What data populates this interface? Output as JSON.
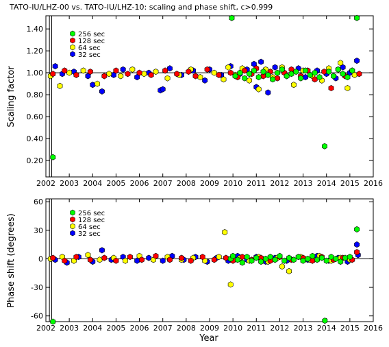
{
  "chart_data": [
    {
      "type": "scatter",
      "title": "TATO-IU/LHZ-00 vs. TATO-IU/LHZ-10: scaling and phase shift, c>0.999",
      "xlabel": "",
      "ylabel": "Scaling factor",
      "xlim": [
        2002.0,
        2016.0
      ],
      "ylim": [
        0.05,
        1.52
      ],
      "x_ticks": [
        "2002",
        "2003",
        "2004",
        "2005",
        "2006",
        "2007",
        "2008",
        "2009",
        "2010",
        "2011",
        "2012",
        "2013",
        "2014",
        "2015",
        "2016"
      ],
      "y_ticks": [
        "0.20",
        "0.40",
        "0.60",
        "0.80",
        "1.00",
        "1.20",
        "1.40"
      ],
      "reference_line": 1.0,
      "vertical_lines": [
        2002.15,
        2002.25
      ],
      "legend_position": "top-left",
      "series": [
        {
          "name": "32 sec",
          "color": "#0000ff",
          "x": [
            2002.4,
            2002.7,
            2003.2,
            2003.8,
            2004.0,
            2004.4,
            2004.9,
            2005.3,
            2005.9,
            2006.4,
            2006.9,
            2007.0,
            2007.3,
            2007.8,
            2008.3,
            2008.8,
            2009.0,
            2009.5,
            2009.9,
            2010.3,
            2010.6,
            2010.9,
            2011.0,
            2011.2,
            2011.5,
            2011.8,
            2012.3,
            2012.8,
            2013.1,
            2013.6,
            2014.0,
            2014.4,
            2014.7,
            2015.0,
            2015.3
          ],
          "y": [
            1.06,
            0.99,
            1.01,
            0.97,
            0.89,
            0.83,
            0.98,
            1.03,
            0.96,
            1.0,
            0.84,
            0.85,
            1.04,
            0.98,
            1.02,
            0.93,
            1.03,
            0.98,
            1.06,
            0.99,
            1.03,
            1.08,
            0.87,
            1.1,
            0.82,
            1.05,
            0.97,
            1.04,
            0.96,
            1.02,
            0.99,
            0.95,
            1.05,
            1.0,
            1.11
          ]
        },
        {
          "name": "64 sec",
          "color": "#ffff00",
          "x": [
            2002.2,
            2002.6,
            2003.0,
            2003.6,
            2004.2,
            2004.7,
            2005.2,
            2005.7,
            2006.2,
            2006.7,
            2007.2,
            2007.7,
            2008.2,
            2008.6,
            2009.2,
            2009.6,
            2009.8,
            2010.1,
            2010.4,
            2010.7,
            2011.1,
            2011.4,
            2011.7,
            2012.1,
            2012.6,
            2013.0,
            2013.4,
            2013.8,
            2014.1,
            2014.6,
            2014.9,
            2015.2
          ],
          "y": [
            0.97,
            0.88,
            1.0,
            1.02,
            0.9,
            0.99,
            0.97,
            1.03,
            0.99,
            1.01,
            0.95,
            0.98,
            1.03,
            0.96,
            1.0,
            0.94,
            1.05,
            0.98,
            1.04,
            0.93,
            0.85,
            1.03,
            0.96,
            1.05,
            0.89,
            1.02,
            0.97,
            0.93,
            1.04,
            1.09,
            0.86,
            0.98
          ]
        },
        {
          "name": "128 sec",
          "color": "#ff0000",
          "x": [
            2002.3,
            2002.8,
            2003.3,
            2003.9,
            2004.5,
            2005.0,
            2005.5,
            2006.0,
            2006.5,
            2007.1,
            2007.6,
            2008.1,
            2008.4,
            2008.9,
            2009.4,
            2009.9,
            2010.2,
            2010.5,
            2010.8,
            2011.0,
            2011.3,
            2011.6,
            2011.9,
            2012.2,
            2012.5,
            2012.9,
            2013.2,
            2013.5,
            2013.9,
            2014.2,
            2014.5,
            2014.8,
            2015.1,
            2015.4
          ],
          "y": [
            0.99,
            1.02,
            0.98,
            1.01,
            0.97,
            1.02,
            0.99,
            1.0,
            0.98,
            1.02,
            0.99,
            1.01,
            0.97,
            1.03,
            0.98,
            1.0,
            0.96,
            1.02,
            0.99,
            1.04,
            0.97,
            1.01,
            0.95,
            1.0,
            1.03,
            0.97,
            1.02,
            0.94,
            1.01,
            0.86,
            1.03,
            0.97,
            1.02,
            0.99
          ]
        },
        {
          "name": "256 sec",
          "color": "#00ff00",
          "x": [
            2002.3,
            2009.95,
            2010.1,
            2010.3,
            2010.5,
            2010.7,
            2010.9,
            2011.1,
            2011.3,
            2011.5,
            2011.7,
            2011.9,
            2012.1,
            2012.3,
            2012.5,
            2012.7,
            2012.9,
            2013.1,
            2013.3,
            2013.5,
            2013.7,
            2013.92,
            2014.1,
            2014.3,
            2014.5,
            2014.7,
            2014.9,
            2015.1,
            2015.3
          ],
          "y": [
            0.23,
            1.5,
            0.97,
            1.0,
            0.95,
            0.99,
            1.02,
            0.96,
            1.01,
            0.98,
            0.94,
            1.0,
            1.03,
            0.97,
            0.99,
            1.01,
            0.95,
            1.02,
            0.98,
            1.0,
            0.96,
            0.33,
            1.01,
            0.97,
            1.03,
            0.99,
            0.96,
            1.02,
            1.5
          ]
        }
      ]
    },
    {
      "type": "scatter",
      "title": "",
      "xlabel": "Year",
      "ylabel": "Phase shift (degrees)",
      "xlim": [
        2002.0,
        2016.0
      ],
      "ylim": [
        -66,
        63
      ],
      "x_ticks": [
        "2002",
        "2003",
        "2004",
        "2005",
        "2006",
        "2007",
        "2008",
        "2009",
        "2010",
        "2011",
        "2012",
        "2013",
        "2014",
        "2015",
        "2016"
      ],
      "y_ticks": [
        "-60",
        "-30",
        "0",
        "30",
        "60"
      ],
      "reference_line": 0,
      "vertical_lines": [
        2002.15,
        2002.25
      ],
      "legend_position": "top-left",
      "series": [
        {
          "name": "32 sec",
          "color": "#0000ff",
          "x": [
            2002.4,
            2002.9,
            2003.4,
            2004.0,
            2004.4,
            2004.8,
            2005.3,
            2005.9,
            2006.4,
            2007.0,
            2007.4,
            2007.9,
            2008.4,
            2008.9,
            2009.3,
            2009.8,
            2010.2,
            2010.6,
            2011.0,
            2011.4,
            2011.8,
            2012.3,
            2012.8,
            2013.2,
            2013.6,
            2014.1,
            2014.5,
            2014.9,
            2015.3,
            2015.35
          ],
          "y": [
            -1,
            -4,
            2,
            -3,
            9,
            -1,
            2,
            -2,
            1,
            -2,
            3,
            -1,
            2,
            -3,
            1,
            -2,
            3,
            -1,
            2,
            -3,
            1,
            -2,
            2,
            -1,
            3,
            -2,
            1,
            -3,
            15,
            4
          ]
        },
        {
          "name": "64 sec",
          "color": "#ffff00",
          "x": [
            2002.2,
            2002.7,
            2003.2,
            2003.8,
            2004.3,
            2004.9,
            2005.4,
            2006.0,
            2006.6,
            2007.2,
            2007.8,
            2008.3,
            2008.8,
            2009.4,
            2009.65,
            2009.9,
            2010.3,
            2010.7,
            2011.1,
            2011.5,
            2011.9,
            2012.1,
            2012.4,
            2012.9,
            2013.3,
            2013.7,
            2014.2,
            2014.6,
            2015.0
          ],
          "y": [
            0,
            2,
            -2,
            4,
            -1,
            1,
            -2,
            3,
            -1,
            2,
            -1,
            1,
            -2,
            2,
            28,
            -27,
            1,
            -2,
            2,
            -3,
            1,
            -8,
            -13,
            2,
            -1,
            3,
            -2,
            1,
            -1
          ]
        },
        {
          "name": "128 sec",
          "color": "#ff0000",
          "x": [
            2002.3,
            2002.8,
            2003.3,
            2003.9,
            2004.5,
            2005.0,
            2005.6,
            2006.1,
            2006.7,
            2007.3,
            2007.8,
            2008.2,
            2008.7,
            2009.2,
            2009.7,
            2010.0,
            2010.4,
            2010.8,
            2011.2,
            2011.6,
            2012.0,
            2012.5,
            2013.0,
            2013.4,
            2013.8,
            2014.3,
            2014.7,
            2015.1,
            2015.3
          ],
          "y": [
            1,
            -2,
            2,
            -1,
            1,
            -2,
            2,
            -1,
            3,
            -1,
            1,
            -2,
            2,
            -1,
            1,
            -2,
            2,
            -1,
            1,
            -2,
            2,
            -1,
            1,
            -2,
            2,
            -1,
            1,
            -1,
            7
          ]
        },
        {
          "name": "256 sec",
          "color": "#00ff00",
          "x": [
            2002.3,
            2009.9,
            2010.0,
            2010.2,
            2010.4,
            2010.6,
            2010.8,
            2011.0,
            2011.2,
            2011.4,
            2011.6,
            2011.8,
            2012.0,
            2012.2,
            2012.4,
            2012.6,
            2012.8,
            2013.0,
            2013.2,
            2013.4,
            2013.6,
            2013.8,
            2013.93,
            2014.0,
            2014.2,
            2014.4,
            2014.6,
            2014.8,
            2015.0,
            2015.3
          ],
          "y": [
            -66,
            0,
            3,
            -1,
            -4,
            2,
            -2,
            1,
            -3,
            0,
            2,
            -1,
            3,
            -2,
            1,
            -1,
            2,
            -2,
            0,
            3,
            -1,
            1,
            -65,
            -2,
            2,
            0,
            -3,
            1,
            2,
            31
          ]
        }
      ]
    }
  ]
}
